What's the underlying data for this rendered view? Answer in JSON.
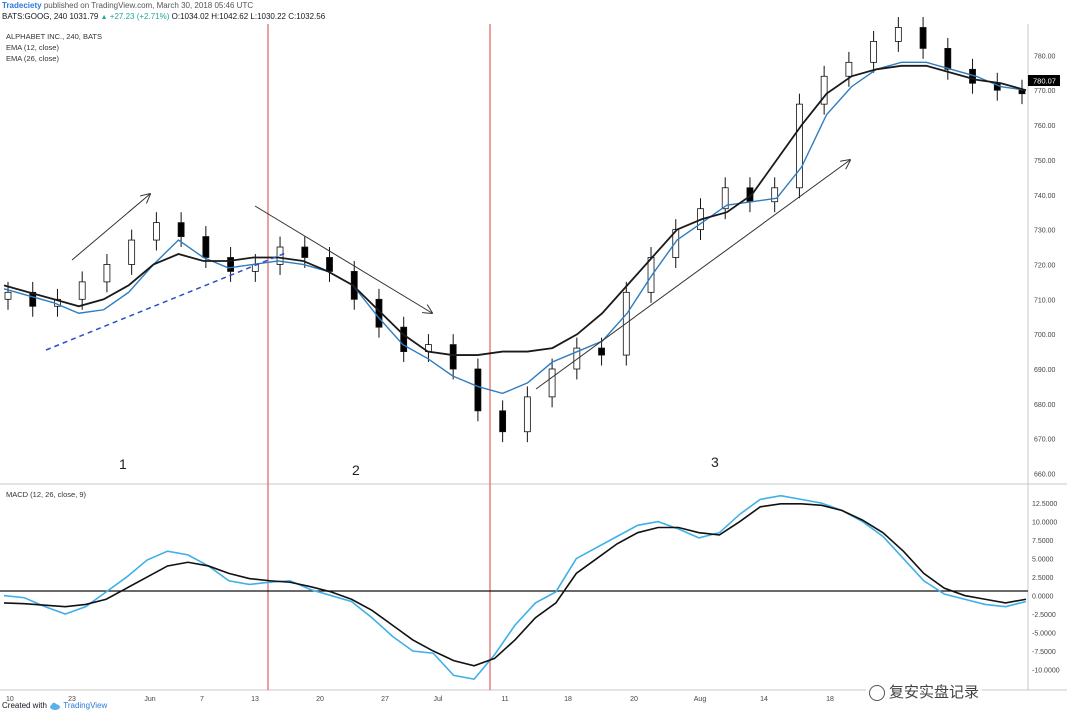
{
  "header": {
    "brand": "Tradeciety",
    "published": "published on TradingView.com, March 30, 2018 05:46 UTC",
    "symbol": "BATS:GOOG, 240",
    "last": "1031.79",
    "change": "+27.23 (+2.71%)",
    "open": "O:1034.02",
    "high": "H:1042.62",
    "low": "L:1030.22",
    "close": "C:1032.56"
  },
  "legend": {
    "instrument": "ALPHABET INC., 240, BATS",
    "ema_fast": "EMA (12, close)",
    "ema_slow": "EMA (26, close)",
    "macd": "MACD (12, 26, close, 9)"
  },
  "colors": {
    "candle_up": "#ffffff",
    "candle_down": "#000000",
    "ema_fast": "#2f7dbf",
    "ema_slow": "#1a1a1a",
    "macd_line": "#3fb0e8",
    "signal_line": "#111111",
    "vline": "#e06060",
    "trend": "#2a4fc7",
    "price_tag_bg": "#000000"
  },
  "phase_labels": [
    "1",
    "2",
    "3"
  ],
  "price_tag": "780.07",
  "footer": {
    "created": "Created with",
    "tv": "TradingView"
  },
  "watermark": "复安实盘记录",
  "chart_data": [
    {
      "type": "candlestick",
      "title": "ALPHABET INC., 240, BATS",
      "x_tick_labels": [
        "10",
        "23",
        "Jun",
        "7",
        "13",
        "20",
        "27",
        "Jul",
        "11",
        "18",
        "20",
        "Aug",
        "14",
        "18"
      ],
      "y_tick_labels": [
        "660.00",
        "670.00",
        "680.00",
        "690.00",
        "700.00",
        "710.00",
        "720.00",
        "730.00",
        "740.00",
        "750.00",
        "760.00",
        "770.00",
        "780.00"
      ],
      "ylim": [
        657,
        789
      ],
      "series": [
        {
          "name": "EMA (12, close)",
          "values": [
            713,
            711,
            709,
            706,
            707,
            712,
            720,
            727,
            722,
            719,
            720,
            721,
            720,
            718,
            714,
            705,
            697,
            693,
            688,
            685,
            683,
            686,
            692,
            695,
            698,
            706,
            717,
            727,
            732,
            737,
            738,
            739,
            748,
            763,
            771,
            776,
            778,
            778,
            776,
            774,
            771,
            770
          ]
        },
        {
          "name": "EMA (26, close)",
          "values": [
            714,
            712,
            710,
            708,
            710,
            714,
            720,
            723,
            721,
            721,
            722,
            722,
            721,
            718,
            714,
            707,
            700,
            695,
            694,
            694,
            695,
            695,
            696,
            700,
            706,
            714,
            722,
            730,
            733,
            735,
            740,
            750,
            760,
            769,
            774,
            776,
            777,
            777,
            775,
            773,
            772,
            770
          ]
        }
      ],
      "candles_approx": [
        712,
        708,
        710,
        715,
        720,
        727,
        732,
        728,
        722,
        718,
        720,
        725,
        722,
        718,
        710,
        702,
        695,
        697,
        690,
        678,
        672,
        682,
        690,
        696,
        694,
        712,
        722,
        730,
        736,
        742,
        738,
        742,
        766,
        774,
        778,
        784,
        788,
        782,
        776,
        772,
        770,
        769
      ]
    },
    {
      "type": "line",
      "title": "MACD (12, 26, close, 9)",
      "y_tick_labels": [
        "12.5000",
        "10.0000",
        "7.5000",
        "5.0000",
        "2.5000",
        "0.0000",
        "-2.5000",
        "-5.0000",
        "-7.5000",
        "-10.0000"
      ],
      "ylim": [
        -12.5,
        14
      ],
      "series": [
        {
          "name": "MACD",
          "values": [
            0,
            -0.3,
            -1.5,
            -2.5,
            -1.5,
            0.5,
            2.5,
            4.8,
            6,
            5.5,
            4,
            2,
            1.5,
            1.8,
            2,
            0.8,
            0,
            -0.8,
            -3,
            -5.5,
            -7.5,
            -7.8,
            -10.8,
            -11.3,
            -8,
            -4,
            -1,
            0.5,
            5,
            6.5,
            8,
            9.5,
            10,
            9,
            7.8,
            8.5,
            11,
            13,
            13.5,
            13,
            12.5,
            11.5,
            10,
            8,
            5,
            2,
            0.2,
            -0.5,
            -1.2,
            -1.5,
            -0.8
          ]
        },
        {
          "name": "Signal",
          "values": [
            -1,
            -1.1,
            -1.3,
            -1.5,
            -1.2,
            -0.5,
            1,
            2.5,
            4,
            4.5,
            4,
            3,
            2.3,
            2,
            1.8,
            1.2,
            0.5,
            -0.5,
            -2,
            -4,
            -6,
            -7.5,
            -8.8,
            -9.5,
            -8.5,
            -6,
            -3,
            -1,
            3,
            5,
            7,
            8.5,
            9.2,
            9.2,
            8.5,
            8.2,
            10,
            12,
            12.4,
            12.4,
            12.2,
            11.5,
            10.2,
            8.5,
            6,
            3,
            1,
            0,
            -0.5,
            -1,
            -0.5
          ]
        }
      ]
    }
  ]
}
